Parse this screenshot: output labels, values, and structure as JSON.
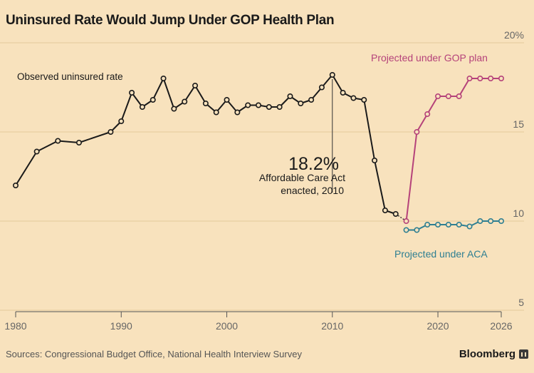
{
  "title": "Uninsured Rate Would Jump Under GOP Health Plan",
  "source": "Sources: Congressional Budget Office, National Health Interview Survey",
  "brand": "Bloomberg",
  "colors": {
    "background": "#f8e2bd",
    "observed": "#1a1a1a",
    "gop": "#b5427a",
    "aca": "#2e7f92",
    "grid": "#e5c99c"
  },
  "chart_data": {
    "type": "line",
    "title": "Uninsured Rate Would Jump Under GOP Health Plan",
    "xlim": [
      1980,
      2026
    ],
    "ylim": [
      5,
      20
    ],
    "x_ticks": [
      1980,
      1990,
      2000,
      2010,
      2020,
      2026
    ],
    "x_tick_labels": [
      "1980",
      "1990",
      "2000",
      "2010",
      "2020",
      "2026"
    ],
    "y_ticks": [
      5,
      10,
      15,
      20
    ],
    "y_tick_labels": [
      "5",
      "10",
      "15",
      "20%"
    ],
    "grid": true,
    "series": [
      {
        "name": "Observed uninsured rate",
        "x": [
          1980,
          1982,
          1984,
          1986,
          1989,
          1990,
          1991,
          1992,
          1993,
          1994,
          1995,
          1996,
          1997,
          1998,
          1999,
          2000,
          2001,
          2002,
          2003,
          2004,
          2005,
          2006,
          2007,
          2008,
          2009,
          2010,
          2011,
          2012,
          2013,
          2014,
          2015,
          2016
        ],
        "y": [
          12.0,
          13.9,
          14.5,
          14.4,
          15.0,
          15.6,
          17.2,
          16.4,
          16.8,
          18.0,
          16.3,
          16.7,
          17.6,
          16.6,
          16.1,
          16.8,
          16.1,
          16.5,
          16.5,
          16.4,
          16.4,
          17.0,
          16.6,
          16.8,
          17.5,
          18.2,
          17.2,
          16.9,
          16.8,
          13.4,
          10.6,
          10.4
        ]
      },
      {
        "name": "Projected under GOP plan",
        "x": [
          2017,
          2018,
          2019,
          2020,
          2021,
          2022,
          2023,
          2024,
          2025,
          2026
        ],
        "y": [
          10.0,
          15.0,
          16.0,
          17.0,
          17.0,
          17.0,
          18.0,
          18.0,
          18.0,
          18.0
        ]
      },
      {
        "name": "Projected under ACA",
        "x": [
          2017,
          2018,
          2019,
          2020,
          2021,
          2022,
          2023,
          2024,
          2025,
          2026
        ],
        "y": [
          9.5,
          9.5,
          9.8,
          9.8,
          9.8,
          9.8,
          9.7,
          10.0,
          10.0,
          10.0
        ]
      }
    ],
    "connector": {
      "x": [
        2016,
        2017
      ],
      "y": [
        10.4,
        10.0
      ]
    },
    "annotations": {
      "observed_label": "Observed uninsured rate",
      "gop_label": "Projected under GOP plan",
      "aca_label": "Projected under ACA",
      "peak_value": "18.2%",
      "peak_line1": "Affordable Care Act",
      "peak_line2": "enacted, 2010",
      "peak_x": 2010,
      "peak_y": 18.2
    }
  }
}
